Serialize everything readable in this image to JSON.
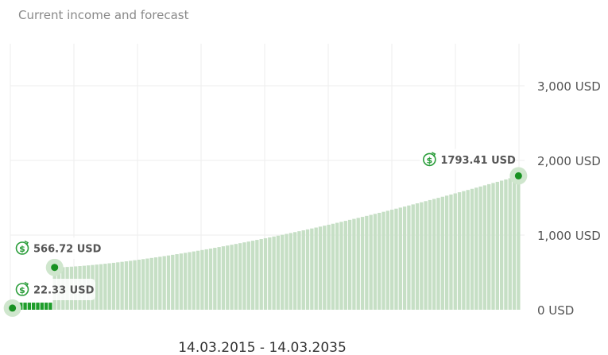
{
  "title": "Current income and forecast",
  "date_range": "14.03.2015 - 14.03.2035",
  "colors": {
    "bar_forecast": "#c6dfc5",
    "bar_current": "#1e9d2a",
    "marker": "#189121",
    "marker_halo": "#cfe6cd",
    "callout_icon": "#2a9d3a",
    "grid": "#eeeeee"
  },
  "callout_icon": "dollar-cycle-icon",
  "chart_data": {
    "type": "bar",
    "title": "Current income and forecast",
    "xlabel": "14.03.2015 - 14.03.2035",
    "ylabel": "",
    "ylim": [
      0,
      3500
    ],
    "yticks": [
      {
        "value": 0,
        "label": "0 USD"
      },
      {
        "value": 1000,
        "label": "1,000 USD"
      },
      {
        "value": 2000,
        "label": "2,000 USD"
      },
      {
        "value": 3000,
        "label": "3,000 USD"
      }
    ],
    "grid": true,
    "bar_count": 121,
    "current_bars": 10,
    "current_values": [
      22.33,
      95,
      95,
      95,
      95,
      95,
      95,
      95,
      95,
      95
    ],
    "first_forecast_value": 566.72,
    "final_value": 1793.41,
    "annotations": [
      {
        "label": "22.33 USD",
        "value": 22.33,
        "bar_index": 0,
        "anchor": "above"
      },
      {
        "label": "566.72 USD",
        "value": 566.72,
        "bar_index": 10,
        "anchor": "above"
      },
      {
        "label": "1793.41 USD",
        "value": 1793.41,
        "bar_index": 120,
        "anchor": "above"
      }
    ]
  }
}
